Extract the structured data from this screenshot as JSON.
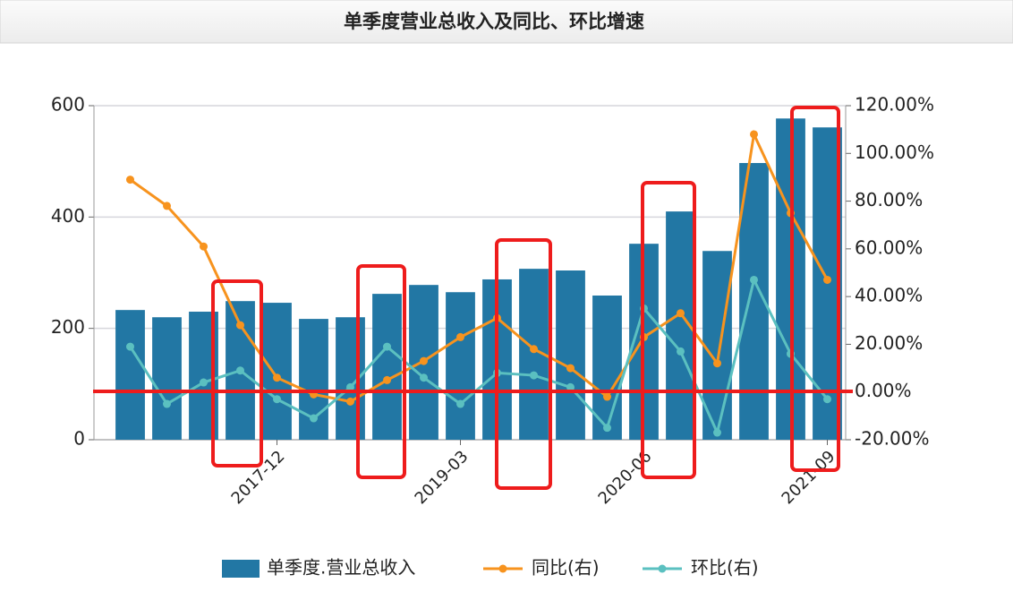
{
  "chart_data": {
    "type": "bar-line",
    "title": "单季度营业总收入及同比、环比增速",
    "categories": [
      null,
      null,
      null,
      null,
      "2017-12",
      null,
      null,
      null,
      null,
      "2019-03",
      null,
      null,
      null,
      null,
      "2020-06",
      null,
      null,
      null,
      null,
      "2021-09"
    ],
    "series": [
      {
        "name": "单季度.营业总收入",
        "type": "bar",
        "color": "#2277a4",
        "axis": "y",
        "values": [
          233,
          220,
          230,
          249,
          246,
          217,
          220,
          262,
          278,
          265,
          288,
          307,
          304,
          259,
          352,
          410,
          339,
          497,
          577,
          561
        ]
      },
      {
        "name": "同比(右)",
        "type": "line",
        "color": "#f7931e",
        "axis": "y2",
        "values": [
          89,
          78,
          61,
          28,
          6,
          -1,
          -4,
          5,
          13,
          23,
          31,
          18,
          10,
          -2,
          23,
          33,
          12,
          108,
          75,
          47
        ]
      },
      {
        "name": "环比(右)",
        "type": "line",
        "color": "#5bc0c0",
        "axis": "y2",
        "values": [
          19,
          -5,
          4,
          9,
          -3,
          -11,
          2,
          19,
          6,
          -5,
          8,
          7,
          2,
          -15,
          35,
          17,
          -17,
          47,
          16,
          -3
        ]
      }
    ],
    "ylim": [
      0,
      600
    ],
    "yticks": [
      0,
      200,
      400,
      600
    ],
    "y2lim": [
      -20,
      120
    ],
    "y2ticks": [
      {
        "value": -20,
        "label": "-20.00%"
      },
      {
        "value": 0,
        "label": "0.00%"
      },
      {
        "value": 20,
        "label": "20.00%"
      },
      {
        "value": 40,
        "label": "40.00%"
      },
      {
        "value": 60,
        "label": "60.00%"
      },
      {
        "value": 80,
        "label": "80.00%"
      },
      {
        "value": 100,
        "label": "100.00%"
      },
      {
        "value": 120,
        "label": "120.00%"
      }
    ],
    "grid": true,
    "legend": "bottom"
  }
}
